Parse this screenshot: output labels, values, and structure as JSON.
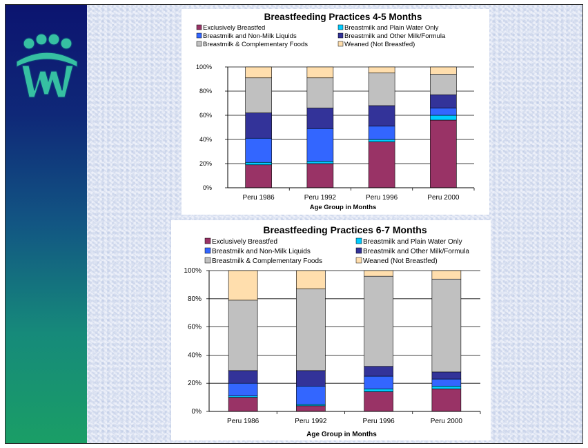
{
  "chart_data": [
    {
      "type": "bar",
      "stacked": true,
      "title": "Breastfeeding Practices 4-5 Months",
      "xlabel": "Age Group in Months",
      "ylabel": "",
      "ylim": [
        0,
        100
      ],
      "yticks": [
        "0%",
        "20%",
        "40%",
        "60%",
        "80%",
        "100%"
      ],
      "grid": true,
      "legend_position": "top",
      "categories": [
        "Peru 1986",
        "Peru 1992",
        "Peru 1996",
        "Peru 2000"
      ],
      "series": [
        {
          "name": "Exclusively Breastfed",
          "color": "#993366",
          "values": [
            19,
            20,
            38,
            56
          ]
        },
        {
          "name": "Breastmilk and Plain Water Only",
          "color": "#00ccff",
          "values": [
            2,
            2,
            2,
            4
          ]
        },
        {
          "name": "Breastmilk and Non-Milk Liquids",
          "color": "#3366ff",
          "values": [
            20,
            27,
            11,
            6
          ]
        },
        {
          "name": "Breastmilk and Other Milk/Formula",
          "color": "#333399",
          "values": [
            21,
            17,
            17,
            11
          ]
        },
        {
          "name": "Breastmilk & Complementary Foods",
          "color": "#c0c0c0",
          "values": [
            29,
            25,
            27,
            17
          ]
        },
        {
          "name": "Weaned (Not Breastfed)",
          "color": "#ffdead",
          "values": [
            9,
            9,
            5,
            6
          ]
        }
      ]
    },
    {
      "type": "bar",
      "stacked": true,
      "title": "Breastfeeding Practices 6-7 Months",
      "xlabel": "Age Group in Months",
      "ylabel": "",
      "ylim": [
        0,
        100
      ],
      "yticks": [
        "0%",
        "20%",
        "40%",
        "60%",
        "80%",
        "100%"
      ],
      "grid": true,
      "legend_position": "top",
      "categories": [
        "Peru 1986",
        "Peru 1992",
        "Peru 1996",
        "Peru 2000"
      ],
      "series": [
        {
          "name": "Exclusively Breastfed",
          "color": "#993366",
          "values": [
            10,
            4,
            14,
            16
          ]
        },
        {
          "name": "Breastmilk and Plain Water Only",
          "color": "#00ccff",
          "values": [
            1,
            1,
            2,
            2
          ]
        },
        {
          "name": "Breastmilk and Non-Milk Liquids",
          "color": "#3366ff",
          "values": [
            9,
            13,
            9,
            5
          ]
        },
        {
          "name": "Breastmilk and Other Milk/Formula",
          "color": "#333399",
          "values": [
            9,
            11,
            7,
            5
          ]
        },
        {
          "name": "Breastmilk & Complementary Foods",
          "color": "#c0c0c0",
          "values": [
            50,
            58,
            64,
            66
          ]
        },
        {
          "name": "Weaned (Not Breastfed)",
          "color": "#ffdead",
          "values": [
            21,
            13,
            4,
            6
          ]
        }
      ]
    }
  ]
}
